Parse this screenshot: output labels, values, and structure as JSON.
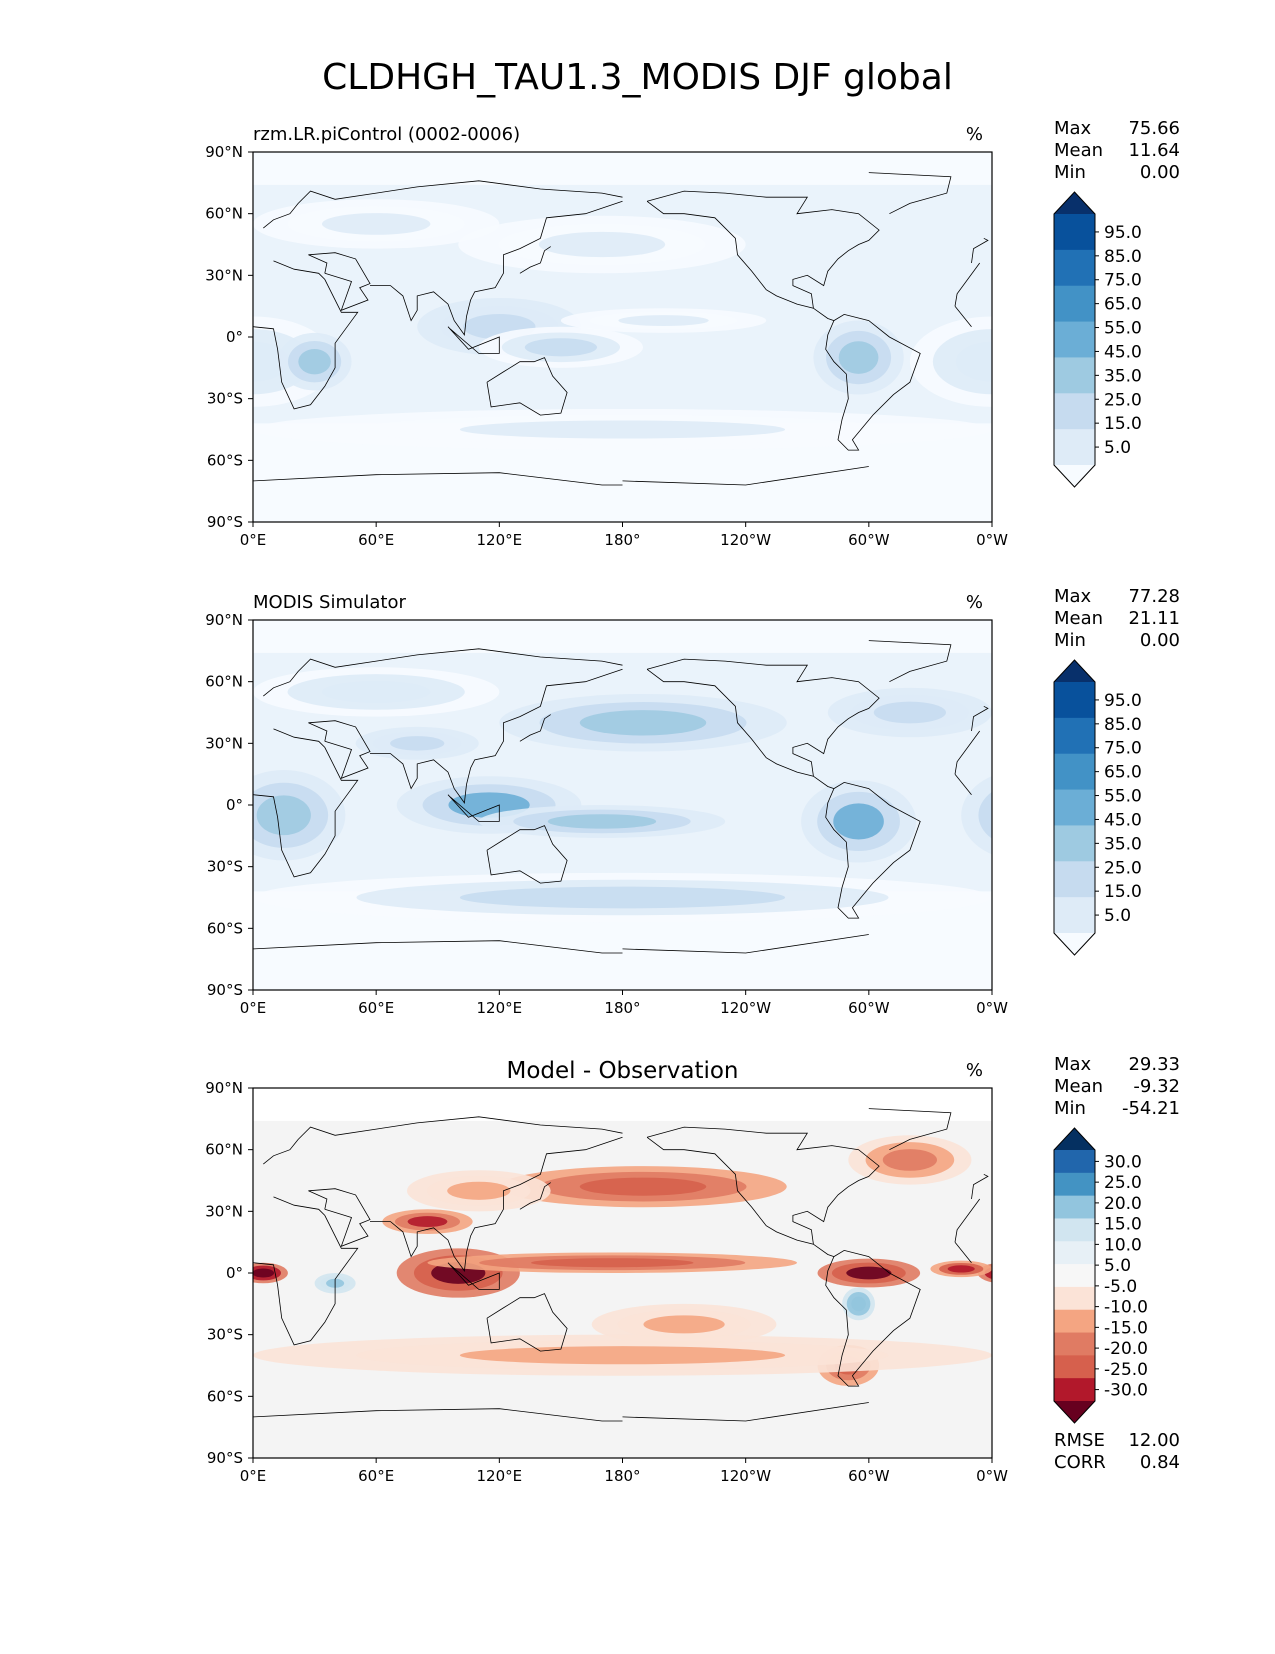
{
  "title": "CLDHGH_TAU1.3_MODIS DJF global",
  "lon_ticks": [
    "0°E",
    "60°E",
    "120°E",
    "180°",
    "120°W",
    "60°W",
    "0°W"
  ],
  "lat_ticks": [
    "90°N",
    "60°N",
    "30°N",
    "0°",
    "30°S",
    "60°S",
    "90°S"
  ],
  "panels": [
    {
      "id": "model",
      "title": "rzm.LR.piControl (0002-0006)",
      "title_align": "left",
      "units": "%",
      "stats": [
        {
          "label": "Max",
          "value": "75.66"
        },
        {
          "label": "Mean",
          "value": "11.64"
        },
        {
          "label": "Min",
          "value": "0.00"
        }
      ],
      "colorbar": {
        "labels": [
          "95.0",
          "85.0",
          "75.0",
          "65.0",
          "55.0",
          "45.0",
          "35.0",
          "25.0",
          "15.0",
          "5.0"
        ],
        "colors": [
          "#08306b",
          "#08519c",
          "#2171b5",
          "#4292c6",
          "#6baed6",
          "#9ecae1",
          "#c6dbef",
          "#deebf7",
          "#f7fbff"
        ]
      },
      "fill_scale": "blues",
      "features": [
        {
          "lon": 0,
          "lat": -12,
          "rx": 40,
          "ry": 22,
          "v": 18
        },
        {
          "lon": 30,
          "lat": -12,
          "rx": 18,
          "ry": 14,
          "v": 35
        },
        {
          "lon": 120,
          "lat": 5,
          "rx": 40,
          "ry": 14,
          "v": 26
        },
        {
          "lon": 150,
          "lat": -5,
          "rx": 40,
          "ry": 10,
          "v": 20
        },
        {
          "lon": 200,
          "lat": 8,
          "rx": 50,
          "ry": 6,
          "v": 12
        },
        {
          "lon": 295,
          "lat": -10,
          "rx": 22,
          "ry": 18,
          "v": 32
        },
        {
          "lon": 170,
          "lat": 45,
          "rx": 70,
          "ry": 14,
          "v": 14
        },
        {
          "lon": 180,
          "lat": -45,
          "rx": 180,
          "ry": 10,
          "v": 12
        },
        {
          "lon": 60,
          "lat": 55,
          "rx": 60,
          "ry": 12,
          "v": 11
        }
      ]
    },
    {
      "id": "obs",
      "title": "MODIS Simulator",
      "title_align": "left",
      "units": "%",
      "stats": [
        {
          "label": "Max",
          "value": "77.28"
        },
        {
          "label": "Mean",
          "value": "21.11"
        },
        {
          "label": "Min",
          "value": "0.00"
        }
      ],
      "colorbar": {
        "labels": [
          "95.0",
          "85.0",
          "75.0",
          "65.0",
          "55.0",
          "45.0",
          "35.0",
          "25.0",
          "15.0",
          "5.0"
        ],
        "colors": [
          "#08306b",
          "#08519c",
          "#2171b5",
          "#4292c6",
          "#6baed6",
          "#9ecae1",
          "#c6dbef",
          "#deebf7",
          "#f7fbff"
        ]
      },
      "fill_scale": "blues",
      "features": [
        {
          "lon": 15,
          "lat": -5,
          "rx": 30,
          "ry": 22,
          "v": 32
        },
        {
          "lon": 115,
          "lat": 0,
          "rx": 45,
          "ry": 14,
          "v": 40
        },
        {
          "lon": 170,
          "lat": -8,
          "rx": 60,
          "ry": 8,
          "v": 30
        },
        {
          "lon": 295,
          "lat": -8,
          "rx": 28,
          "ry": 20,
          "v": 42
        },
        {
          "lon": 190,
          "lat": 40,
          "rx": 70,
          "ry": 14,
          "v": 30
        },
        {
          "lon": 80,
          "lat": 30,
          "rx": 30,
          "ry": 8,
          "v": 28
        },
        {
          "lon": 180,
          "lat": -45,
          "rx": 180,
          "ry": 12,
          "v": 22
        },
        {
          "lon": 320,
          "lat": 45,
          "rx": 40,
          "ry": 12,
          "v": 24
        },
        {
          "lon": 60,
          "lat": 55,
          "rx": 60,
          "ry": 12,
          "v": 18
        }
      ]
    },
    {
      "id": "diff",
      "title": "Model - Observation",
      "title_align": "center",
      "units": "%",
      "stats": [
        {
          "label": "Max",
          "value": "29.33"
        },
        {
          "label": "Mean",
          "value": "-9.32"
        },
        {
          "label": "Min",
          "value": "-54.21"
        }
      ],
      "colorbar": {
        "labels": [
          "30.0",
          "25.0",
          "20.0",
          "15.0",
          "10.0",
          "5.0",
          "-5.0",
          "-10.0",
          "-15.0",
          "-20.0",
          "-25.0",
          "-30.0"
        ],
        "colors": [
          "#053061",
          "#2166ac",
          "#4393c3",
          "#92c5de",
          "#d1e5f0",
          "#e7f0f6",
          "#f7f7f7",
          "#fbe3d7",
          "#f4a582",
          "#e07b63",
          "#d6604d",
          "#b2182b",
          "#67001f"
        ]
      },
      "fill_scale": "diverging",
      "features": [
        {
          "lon": 5,
          "lat": 0,
          "rx": 12,
          "ry": 5,
          "v": -35
        },
        {
          "lon": 100,
          "lat": 0,
          "rx": 30,
          "ry": 12,
          "v": -30
        },
        {
          "lon": 85,
          "lat": 25,
          "rx": 22,
          "ry": 6,
          "v": -25
        },
        {
          "lon": 175,
          "lat": 5,
          "rx": 90,
          "ry": 5,
          "v": -20
        },
        {
          "lon": 190,
          "lat": 42,
          "rx": 70,
          "ry": 10,
          "v": -20
        },
        {
          "lon": 300,
          "lat": 0,
          "rx": 25,
          "ry": 7,
          "v": -30
        },
        {
          "lon": 345,
          "lat": 2,
          "rx": 15,
          "ry": 4,
          "v": -28
        },
        {
          "lon": 290,
          "lat": -45,
          "rx": 15,
          "ry": 10,
          "v": -22
        },
        {
          "lon": 210,
          "lat": -25,
          "rx": 45,
          "ry": 10,
          "v": -12
        },
        {
          "lon": 180,
          "lat": -40,
          "rx": 180,
          "ry": 10,
          "v": -10
        },
        {
          "lon": 40,
          "lat": -5,
          "rx": 10,
          "ry": 5,
          "v": 12
        },
        {
          "lon": 295,
          "lat": -15,
          "rx": 8,
          "ry": 8,
          "v": 14
        },
        {
          "lon": 320,
          "lat": 55,
          "rx": 30,
          "ry": 12,
          "v": -18
        },
        {
          "lon": 110,
          "lat": 40,
          "rx": 35,
          "ry": 10,
          "v": -12
        }
      ]
    }
  ],
  "diff_metrics": [
    {
      "label": "RMSE",
      "value": "12.00"
    },
    {
      "label": "CORR",
      "value": "0.84"
    }
  ],
  "coastlines": [
    [
      [
        -18,
        15
      ],
      [
        -10,
        5
      ],
      [
        0,
        5
      ],
      [
        10,
        4
      ],
      [
        12,
        -6
      ],
      [
        14,
        -22
      ],
      [
        20,
        -35
      ],
      [
        28,
        -33
      ],
      [
        35,
        -24
      ],
      [
        40,
        -15
      ],
      [
        40,
        -3
      ],
      [
        51,
        12
      ],
      [
        43,
        12
      ],
      [
        35,
        28
      ],
      [
        32,
        31
      ],
      [
        20,
        33
      ],
      [
        10,
        37
      ],
      [
        -6,
        36
      ],
      [
        -17,
        21
      ],
      [
        -18,
        15
      ]
    ],
    [
      [
        -10,
        36
      ],
      [
        -9,
        43
      ],
      [
        -2,
        47
      ],
      [
        -4,
        48
      ],
      [
        5,
        53
      ],
      [
        10,
        57
      ],
      [
        18,
        60
      ],
      [
        22,
        65
      ],
      [
        28,
        71
      ],
      [
        40,
        67
      ],
      [
        60,
        70
      ],
      [
        80,
        73
      ],
      [
        110,
        76
      ],
      [
        140,
        72
      ],
      [
        170,
        70
      ],
      [
        180,
        68
      ]
    ],
    [
      [
        35,
        31
      ],
      [
        36,
        36
      ],
      [
        27,
        40
      ],
      [
        40,
        41
      ],
      [
        50,
        38
      ],
      [
        57,
        26
      ],
      [
        52,
        24
      ],
      [
        56,
        18
      ],
      [
        43,
        13
      ],
      [
        48,
        27
      ],
      [
        35,
        31
      ]
    ],
    [
      [
        57,
        25
      ],
      [
        67,
        25
      ],
      [
        73,
        20
      ],
      [
        77,
        8
      ],
      [
        80,
        13
      ],
      [
        80,
        20
      ],
      [
        88,
        22
      ],
      [
        95,
        16
      ],
      [
        98,
        8
      ],
      [
        103,
        1
      ],
      [
        104,
        10
      ],
      [
        106,
        18
      ],
      [
        108,
        22
      ],
      [
        118,
        24
      ],
      [
        122,
        31
      ],
      [
        122,
        40
      ],
      [
        130,
        43
      ],
      [
        140,
        48
      ],
      [
        143,
        58
      ],
      [
        162,
        60
      ],
      [
        180,
        66
      ]
    ],
    [
      [
        114,
        -22
      ],
      [
        122,
        -17
      ],
      [
        130,
        -12
      ],
      [
        137,
        -12
      ],
      [
        142,
        -10
      ],
      [
        146,
        -19
      ],
      [
        153,
        -27
      ],
      [
        150,
        -37
      ],
      [
        140,
        -38
      ],
      [
        130,
        -32
      ],
      [
        116,
        -34
      ],
      [
        114,
        -22
      ]
    ],
    [
      [
        95,
        5
      ],
      [
        105,
        -6
      ],
      [
        120,
        0
      ],
      [
        120,
        -8
      ],
      [
        110,
        -8
      ],
      [
        96,
        4
      ]
    ],
    [
      [
        130,
        31
      ],
      [
        135,
        34
      ],
      [
        140,
        36
      ],
      [
        142,
        42
      ],
      [
        145,
        44
      ]
    ],
    [
      [
        -168,
        66
      ],
      [
        -160,
        60
      ],
      [
        -150,
        60
      ],
      [
        -135,
        58
      ],
      [
        -125,
        48
      ],
      [
        -124,
        40
      ],
      [
        -117,
        32
      ],
      [
        -110,
        23
      ],
      [
        -105,
        20
      ],
      [
        -95,
        16
      ],
      [
        -87,
        14
      ],
      [
        -80,
        9
      ],
      [
        -77,
        8
      ],
      [
        -80,
        1
      ],
      [
        -81,
        -6
      ],
      [
        -77,
        -12
      ],
      [
        -71,
        -18
      ],
      [
        -70,
        -30
      ],
      [
        -73,
        -40
      ],
      [
        -75,
        -50
      ],
      [
        -70,
        -55
      ],
      [
        -65,
        -55
      ],
      [
        -68,
        -50
      ],
      [
        -58,
        -38
      ],
      [
        -48,
        -28
      ],
      [
        -40,
        -22
      ],
      [
        -35,
        -8
      ],
      [
        -50,
        0
      ],
      [
        -60,
        8
      ],
      [
        -72,
        11
      ],
      [
        -77,
        8
      ]
    ],
    [
      [
        -87,
        14
      ],
      [
        -88,
        21
      ],
      [
        -97,
        25
      ],
      [
        -97,
        28
      ],
      [
        -90,
        30
      ],
      [
        -82,
        25
      ],
      [
        -80,
        32
      ],
      [
        -75,
        38
      ],
      [
        -70,
        42
      ],
      [
        -65,
        45
      ],
      [
        -60,
        47
      ],
      [
        -55,
        52
      ],
      [
        -65,
        60
      ],
      [
        -78,
        62
      ],
      [
        -95,
        60
      ],
      [
        -90,
        68
      ],
      [
        -110,
        68
      ],
      [
        -130,
        70
      ],
      [
        -150,
        71
      ],
      [
        -168,
        66
      ]
    ],
    [
      [
        -50,
        60
      ],
      [
        -40,
        65
      ],
      [
        -22,
        70
      ],
      [
        -20,
        78
      ],
      [
        -60,
        80
      ]
    ],
    [
      [
        -180,
        -70
      ],
      [
        -120,
        -72
      ],
      [
        -60,
        -63
      ],
      [
        0,
        -70
      ],
      [
        60,
        -67
      ],
      [
        120,
        -66
      ],
      [
        170,
        -72
      ],
      [
        180,
        -72
      ]
    ]
  ]
}
